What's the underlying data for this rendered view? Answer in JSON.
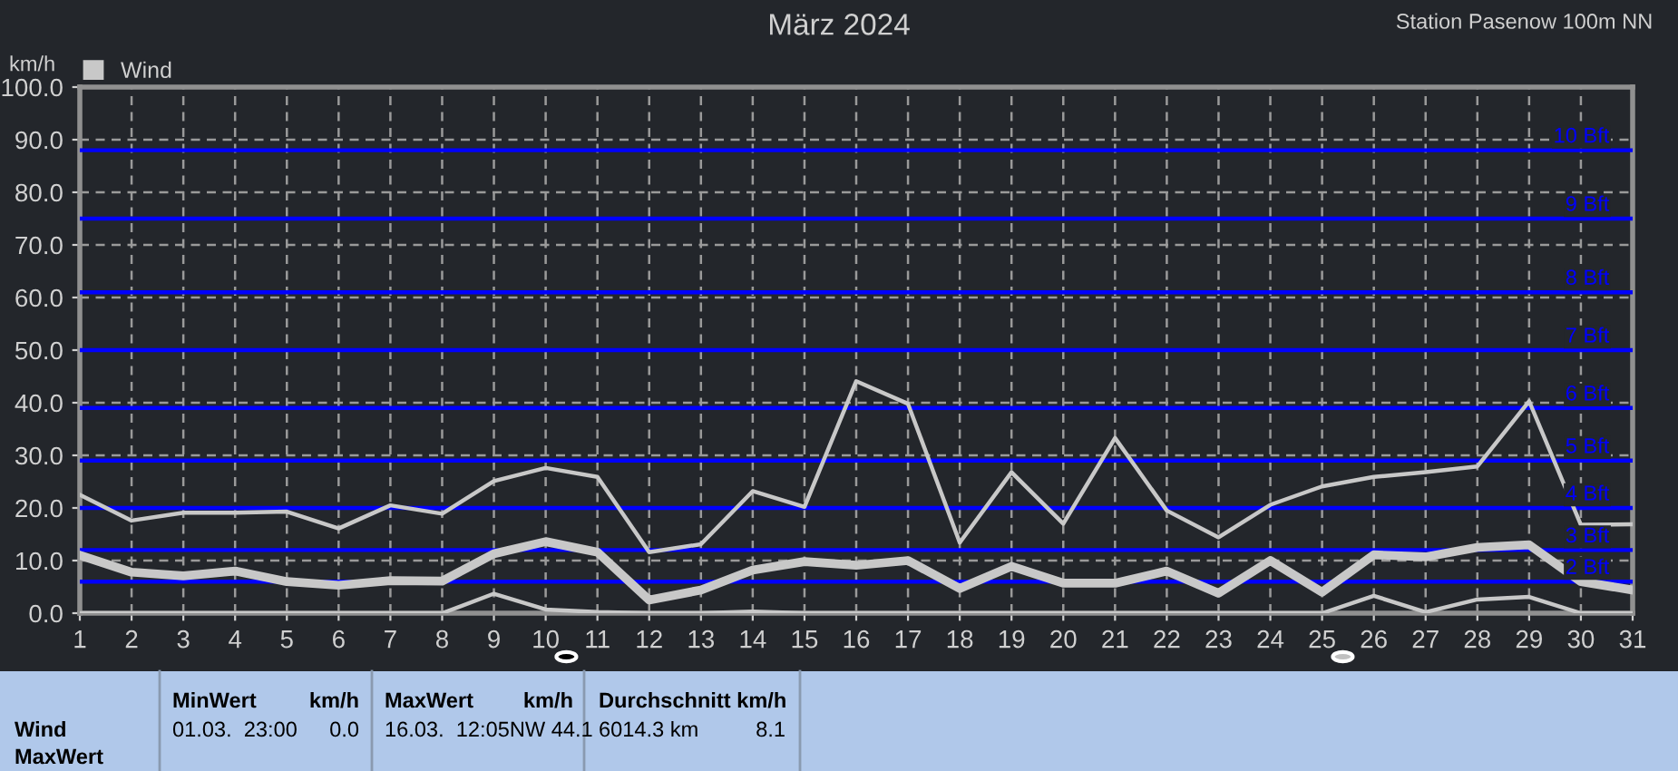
{
  "chart_data": {
    "type": "line",
    "title": "März 2024",
    "subtitle": "Station Pasenow 100m NN",
    "ylabel": "km/h",
    "x": [
      1,
      2,
      3,
      4,
      5,
      6,
      7,
      8,
      9,
      10,
      11,
      12,
      13,
      14,
      15,
      16,
      17,
      18,
      19,
      20,
      21,
      22,
      23,
      24,
      25,
      26,
      27,
      28,
      29,
      30,
      31
    ],
    "series": [
      {
        "color": "#c8c8c8",
        "values": [
          22.5,
          17.6,
          19.1,
          19.1,
          19.3,
          16.1,
          20.5,
          18.9,
          25.1,
          27.6,
          25.9,
          11.6,
          13.1,
          23.2,
          20.2,
          44.1,
          39.8,
          13.4,
          26.8,
          17.0,
          33.3,
          19.5,
          14.4,
          20.6,
          24.1,
          25.9,
          26.8,
          27.9,
          40.3,
          16.8,
          16.9
        ]
      },
      {
        "name": "Wind",
        "color": "#c8c8c8",
        "values": [
          11.0,
          7.8,
          7.1,
          8.0,
          6.0,
          5.3,
          6.2,
          6.1,
          11.3,
          13.6,
          11.6,
          2.5,
          4.4,
          8.2,
          9.8,
          9.1,
          10.0,
          4.7,
          8.9,
          5.7,
          5.7,
          8.0,
          3.8,
          10.0,
          4.0,
          11.1,
          10.7,
          12.5,
          13.0,
          6.0,
          4.4
        ]
      },
      {
        "color": "#c8c8c8",
        "values": [
          0,
          0,
          0,
          0,
          0,
          0,
          0,
          0,
          3.7,
          0.7,
          0.2,
          0,
          0,
          0.3,
          0,
          0,
          0,
          0,
          0,
          0,
          0,
          0,
          0,
          0,
          0,
          3.3,
          0.2,
          2.6,
          3.1,
          0,
          0
        ]
      }
    ],
    "xlim": [
      1,
      31
    ],
    "xticks": [
      1,
      2,
      3,
      4,
      5,
      6,
      7,
      8,
      9,
      10,
      11,
      12,
      13,
      14,
      15,
      16,
      17,
      18,
      19,
      20,
      21,
      22,
      23,
      24,
      25,
      26,
      27,
      28,
      29,
      30,
      31
    ],
    "ylim": [
      0,
      100
    ],
    "yticks": [
      {
        "value": 0,
        "label": "0.0"
      },
      {
        "value": 10,
        "label": "10.0"
      },
      {
        "value": 20,
        "label": "20.0"
      },
      {
        "value": 30,
        "label": "30.0"
      },
      {
        "value": 40,
        "label": "40.0"
      },
      {
        "value": 50,
        "label": "50.0"
      },
      {
        "value": 60,
        "label": "60.0"
      },
      {
        "value": 70,
        "label": "70.0"
      },
      {
        "value": 80,
        "label": "80.0"
      },
      {
        "value": 90,
        "label": "90.0"
      },
      {
        "value": 100,
        "label": "100.0"
      }
    ],
    "ref_lines": [
      {
        "axis": "y",
        "value": 88,
        "label": "10 Bft",
        "color": "#0000ff"
      },
      {
        "axis": "y",
        "value": 75,
        "label": "9 Bft",
        "color": "#0000ff"
      },
      {
        "axis": "y",
        "value": 61,
        "label": "8 Bft",
        "color": "#0000ff"
      },
      {
        "axis": "y",
        "value": 50,
        "label": "7 Bft",
        "color": "#0000ff"
      },
      {
        "axis": "y",
        "value": 39,
        "label": "6 Bft",
        "color": "#0000ff"
      },
      {
        "axis": "y",
        "value": 29,
        "label": "5 Bft",
        "color": "#0000ff"
      },
      {
        "axis": "y",
        "value": 20,
        "label": "4 Bft",
        "color": "#0000ff"
      },
      {
        "axis": "y",
        "value": 12,
        "label": "3 Bft",
        "color": "#0000ff"
      },
      {
        "axis": "y",
        "value": 6,
        "label": "2 Bft",
        "color": "#0000ff"
      }
    ],
    "grid": true,
    "legend": "top left",
    "line_style": "solid",
    "annotations": [
      "Wind",
      "MaxWert",
      "MinWert",
      "km/h",
      "01.03.  23:00",
      "0.0",
      "MaxWert",
      "km/h",
      "16.03.  12:05NW 44.1",
      "Durchschnitt km/h",
      "6014.3 km",
      "8.1"
    ]
  }
}
